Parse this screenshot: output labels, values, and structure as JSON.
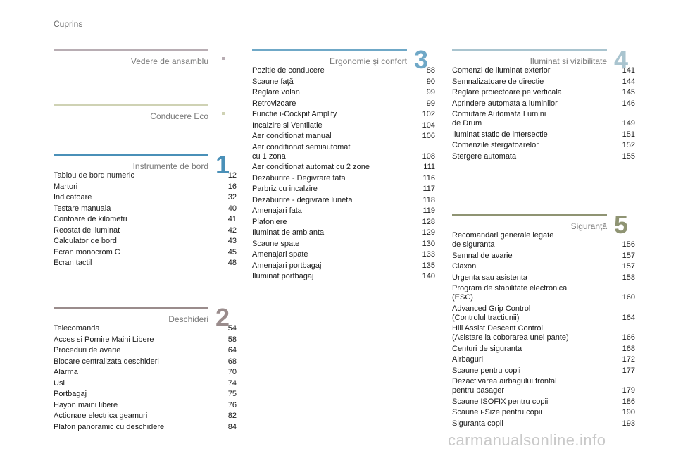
{
  "header": "Cuprins",
  "sections": {
    "vedere": {
      "title": "Vedere de ansamblu",
      "bar_color": "#b8adb3",
      "dot_color": "#b8adb3"
    },
    "eco": {
      "title": "Conducere Eco",
      "bar_color": "#cfd2b4",
      "dot_color": "#cfd2b4"
    },
    "s1": {
      "title": "Instrumente de bord",
      "number": "1",
      "bar_color": "#4a90b8",
      "entries": [
        {
          "t": "Tablou de bord numeric",
          "p": "12"
        },
        {
          "t": "Martori",
          "p": "16"
        },
        {
          "t": "Indicatoare",
          "p": "32"
        },
        {
          "t": "Testare manuala",
          "p": "40"
        },
        {
          "t": "Contoare de kilometri",
          "p": "41"
        },
        {
          "t": "Reostat de iluminat",
          "p": "42"
        },
        {
          "t": "Calculator de bord",
          "p": "43"
        },
        {
          "t": "Ecran monocrom C",
          "p": "45"
        },
        {
          "t": "Ecran tactil",
          "p": "48"
        }
      ]
    },
    "s2": {
      "title": "Deschideri",
      "number": "2",
      "bar_color": "#9a8c8c",
      "entries": [
        {
          "t": "Telecomanda",
          "p": "54"
        },
        {
          "t": "Acces si Pornire Maini Libere",
          "p": "58"
        },
        {
          "t": "Proceduri de avarie",
          "p": "64"
        },
        {
          "t": "Blocare centralizata deschideri",
          "p": "68"
        },
        {
          "t": "Alarma",
          "p": "70"
        },
        {
          "t": "Usi",
          "p": "74"
        },
        {
          "t": "Portbagaj",
          "p": "75"
        },
        {
          "t": "Hayon maini libere",
          "p": "76"
        },
        {
          "t": "Actionare electrica geamuri",
          "p": "82"
        },
        {
          "t": "Plafon panoramic cu deschidere",
          "p": "84"
        }
      ]
    },
    "s3": {
      "title": "Ergonomie şi confort",
      "number": "3",
      "bar_color": "#6fa8c7",
      "entries": [
        {
          "t": "Pozitie de conducere",
          "p": "88"
        },
        {
          "t": "Scaune faţă",
          "p": "90"
        },
        {
          "t": "Reglare volan",
          "p": "99"
        },
        {
          "t": "Retrovizoare",
          "p": "99"
        },
        {
          "t": "Functie i-Cockpit Amplify",
          "p": "102"
        },
        {
          "t": "Incalzire si Ventilatie",
          "p": "104"
        },
        {
          "t": "Aer conditionat manual",
          "p": "106"
        },
        {
          "t": "Aer conditionat semiautomat\n   cu 1 zona",
          "p": "108"
        },
        {
          "t": "Aer conditionat automat cu 2 zone",
          "p": "111"
        },
        {
          "t": "Dezaburire - Degivrare fata",
          "p": "116"
        },
        {
          "t": "Parbriz cu incalzire",
          "p": "117"
        },
        {
          "t": "Dezaburire - degivrare luneta",
          "p": "118"
        },
        {
          "t": "Amenajari fata",
          "p": "119"
        },
        {
          "t": "Plafoniere",
          "p": "128"
        },
        {
          "t": "Iluminat de ambianta",
          "p": "129"
        },
        {
          "t": "Scaune spate",
          "p": "130"
        },
        {
          "t": "Amenajari spate",
          "p": "133"
        },
        {
          "t": "Amenajari portbagaj",
          "p": "135"
        },
        {
          "t": "Iluminat portbagaj",
          "p": "140"
        }
      ]
    },
    "s4": {
      "title": "Iluminat si vizibilitate",
      "number": "4",
      "bar_color": "#a9c4cf",
      "entries": [
        {
          "t": "Comenzi de iluminat exterior",
          "p": "141"
        },
        {
          "t": "Semnalizatoare de directie",
          "p": "144"
        },
        {
          "t": "Reglare proiectoare pe verticala",
          "p": "145"
        },
        {
          "t": "Aprindere automata a luminilor",
          "p": "146"
        },
        {
          "t": "Comutare Automata Lumini\n   de Drum",
          "p": "149"
        },
        {
          "t": "Iluminat static de intersectie",
          "p": "151"
        },
        {
          "t": "Comenzile stergatoarelor",
          "p": "152"
        },
        {
          "t": "Stergere automata",
          "p": "155"
        }
      ]
    },
    "s5": {
      "title": "Siguranţă",
      "number": "5",
      "bar_color": "#8f9473",
      "entries": [
        {
          "t": "Recomandari generale legate\n   de siguranta",
          "p": "156"
        },
        {
          "t": "Semnal de avarie",
          "p": "157"
        },
        {
          "t": "Claxon",
          "p": "157"
        },
        {
          "t": "Urgenta sau asistenta",
          "p": "158"
        },
        {
          "t": "Program de stabilitate electronica\n   (ESC)",
          "p": "160"
        },
        {
          "t": "Advanced Grip Control\n   (Controlul tractiunii)",
          "p": "164"
        },
        {
          "t": "Hill Assist Descent Control\n   (Asistare la coborarea unei pante)",
          "p": "166"
        },
        {
          "t": "Centuri de siguranta",
          "p": "168"
        },
        {
          "t": "Airbaguri",
          "p": "172"
        },
        {
          "t": "Scaune pentru copii",
          "p": "177"
        },
        {
          "t": "Dezactivarea airbagului frontal\n   pentru pasager",
          "p": "179"
        },
        {
          "t": "Scaune ISOFIX pentru copii",
          "p": "186"
        },
        {
          "t": "Scaune i-Size pentru copii",
          "p": "190"
        },
        {
          "t": "Siguranta copii",
          "p": "193"
        }
      ]
    }
  },
  "watermark": "carmanualsonline.info"
}
